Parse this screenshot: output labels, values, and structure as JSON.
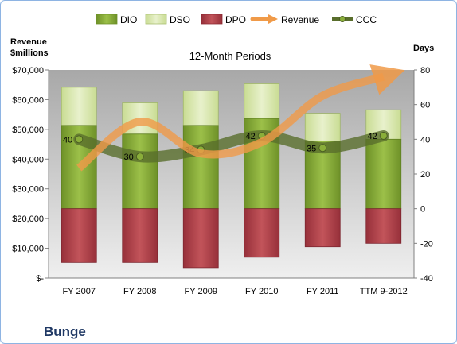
{
  "chart_data": {
    "type": "bar",
    "title": "12-Month Periods",
    "company": "Bunge",
    "left_axis_label_line1": "Revenue",
    "left_axis_label_line2": "$millions",
    "right_axis_label": "Days",
    "categories": [
      "FY 2007",
      "FY 2008",
      "FY 2009",
      "FY 2010",
      "FY 2011",
      "TTM 9-2012"
    ],
    "left_axis": {
      "min": 0,
      "max": 70000,
      "step": 10000,
      "tick_labels": [
        "$-",
        "$10,000",
        "$20,000",
        "$30,000",
        "$40,000",
        "$50,000",
        "$60,000",
        "$70,000"
      ]
    },
    "right_axis": {
      "min": -40,
      "max": 80,
      "step": 20,
      "tick_labels": [
        "-40",
        "-20",
        "0",
        "20",
        "40",
        "60",
        "80"
      ]
    },
    "series": [
      {
        "name": "DIO",
        "axis": "right",
        "kind": "stacked-bar",
        "color": "#8aae3a",
        "values": [
          48,
          43,
          48,
          52,
          39,
          40
        ]
      },
      {
        "name": "DSO",
        "axis": "right",
        "kind": "stacked-bar",
        "color": "#dbe9b4",
        "values": [
          22,
          18,
          20,
          20,
          16,
          17
        ]
      },
      {
        "name": "DPO",
        "axis": "right",
        "kind": "bar-below-zero",
        "color": "#b3434a",
        "values": [
          31,
          31,
          34,
          28,
          22,
          20
        ]
      },
      {
        "name": "Revenue",
        "axis": "left",
        "kind": "line",
        "color": "#f0a050",
        "values": [
          37000,
          52600,
          41900,
          45700,
          61300,
          67700
        ]
      },
      {
        "name": "CCC",
        "axis": "right",
        "kind": "line",
        "color": "#596e2c",
        "values": [
          40,
          30,
          34,
          42,
          35,
          42
        ]
      }
    ],
    "ccc_labels": [
      "40",
      "30",
      "34",
      "42",
      "35",
      "42"
    ],
    "legend_position": "top",
    "grid": false
  },
  "colors": {
    "plot_background_top": "#a8a8a8",
    "plot_background_bottom": "#efefef",
    "company_title": "#1f3864"
  }
}
